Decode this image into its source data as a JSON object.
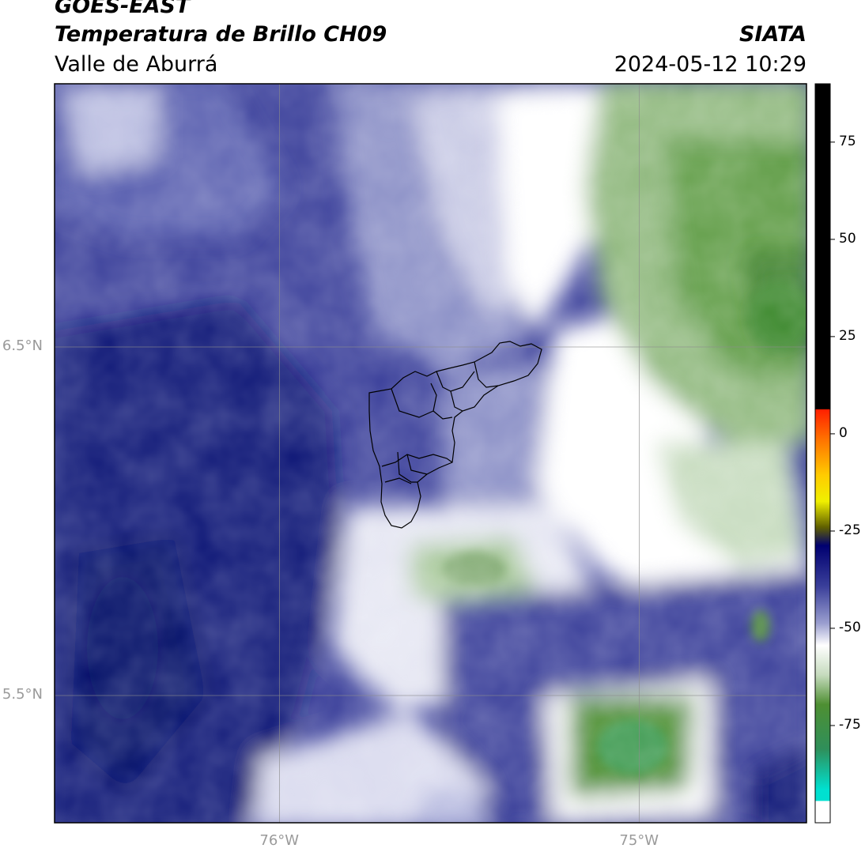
{
  "header": {
    "satellite": "GOES-EAST",
    "product": "Temperatura de Brillo CH09",
    "region": "Valle de Aburrá",
    "organization": "SIATA",
    "timestamp": "2024-05-12 10:29"
  },
  "map": {
    "extent": {
      "lon": [
        -76.625,
        -74.535
      ],
      "lat": [
        5.135,
        7.255
      ]
    },
    "lat_gridlines": [
      {
        "value": 6.5,
        "label": "6.5°N"
      },
      {
        "value": 5.5,
        "label": "5.5°N"
      }
    ],
    "lon_gridlines": [
      {
        "value": -76.0,
        "label": "76°W"
      },
      {
        "value": -75.0,
        "label": "75°W"
      }
    ],
    "grid": true,
    "boundary": "Valle de Aburrá municipal boundaries (black outline near 75.6°W, 6.2°N)"
  },
  "colorbar": {
    "range": [
      -100,
      90
    ],
    "ticks": [
      {
        "value": 75,
        "label": "75"
      },
      {
        "value": 50,
        "label": "50"
      },
      {
        "value": 25,
        "label": "25"
      },
      {
        "value": 0,
        "label": "0"
      },
      {
        "value": -25,
        "label": "-25"
      },
      {
        "value": -50,
        "label": "-50"
      },
      {
        "value": -75,
        "label": "-75"
      }
    ],
    "colors": {
      "navy": "#0b1576",
      "blue": "#3a3f9a",
      "periwinkle": "#8a8fc6",
      "lavender": "#c9cbe5",
      "white": "#ffffff",
      "pale_green": "#c6dbbe",
      "green": "#4e8f32",
      "dark_green": "#3a7f2c",
      "cyan": "#00e0d0",
      "red": "#ff2000",
      "orange": "#ff9000",
      "yellow": "#ffff00",
      "black": "#000000"
    }
  }
}
